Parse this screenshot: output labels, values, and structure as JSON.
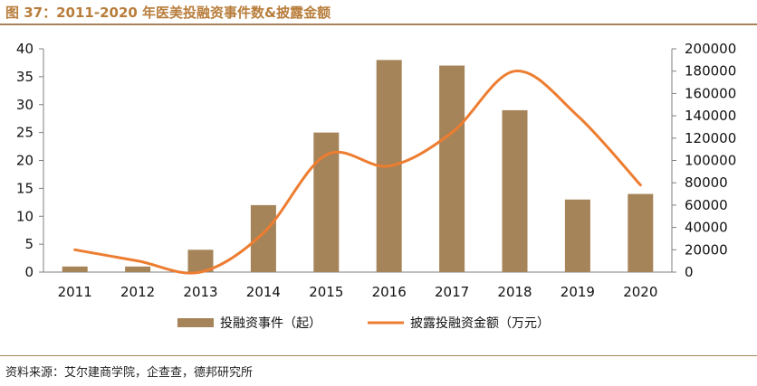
{
  "figure": {
    "title": "图 37：2011-2020 年医美投融资事件数&披露金额",
    "source": "资料来源：艾尔建商学院，企查查，德邦研究所"
  },
  "chart_data": {
    "type": "bar+line",
    "categories": [
      "2011",
      "2012",
      "2013",
      "2014",
      "2015",
      "2016",
      "2017",
      "2018",
      "2019",
      "2020"
    ],
    "series": [
      {
        "name": "投融资事件（起）",
        "type": "bar",
        "axis": "left",
        "color": "#a68459",
        "values": [
          1,
          1,
          4,
          12,
          25,
          38,
          37,
          29,
          13,
          14
        ]
      },
      {
        "name": "披露投融资金额（万元）",
        "type": "line",
        "axis": "right",
        "color": "#ed7d31",
        "values": [
          20000,
          10000,
          0,
          35000,
          105000,
          95000,
          125000,
          180000,
          140000,
          78000
        ]
      }
    ],
    "y_left": {
      "min": 0,
      "max": 40,
      "ticks": [
        0,
        5,
        10,
        15,
        20,
        25,
        30,
        35,
        40
      ]
    },
    "y_right": {
      "min": 0,
      "max": 200000,
      "ticks": [
        0,
        20000,
        40000,
        60000,
        80000,
        100000,
        120000,
        140000,
        160000,
        180000,
        200000
      ]
    },
    "legend_position": "bottom",
    "grid": false
  }
}
